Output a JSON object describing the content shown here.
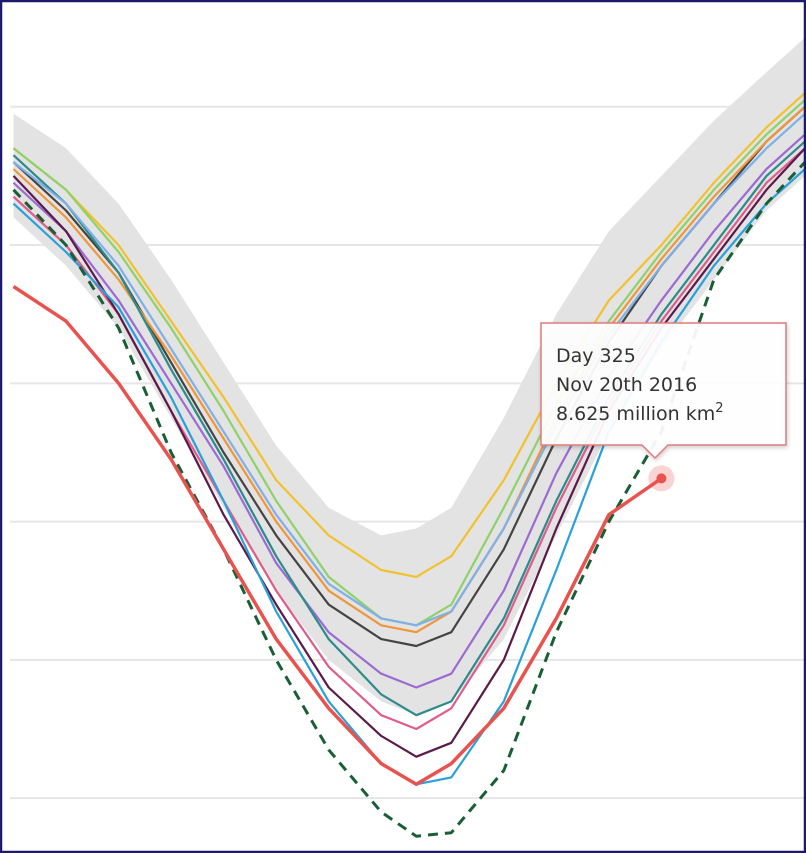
{
  "chart_data": {
    "type": "line",
    "x": [
      140,
      155,
      170,
      185,
      200,
      215,
      230,
      245,
      255,
      265,
      280,
      295,
      310,
      325,
      340,
      355,
      366
    ],
    "xlim": [
      139,
      366
    ],
    "ylim": [
      3.25,
      15.4
    ],
    "yticks": [
      4,
      6,
      8,
      10,
      12,
      14
    ],
    "grid": true,
    "band": {
      "color": "#e3e3e3",
      "lower": [
        12.4,
        11.7,
        10.8,
        9.5,
        8.2,
        7.0,
        6.0,
        5.4,
        5.2,
        5.4,
        6.3,
        7.8,
        9.3,
        10.5,
        11.5,
        12.5,
        13.0
      ],
      "upper": [
        13.9,
        13.4,
        12.6,
        11.5,
        10.3,
        9.1,
        8.2,
        7.8,
        7.9,
        8.2,
        9.5,
        11.0,
        12.2,
        13.0,
        13.8,
        14.5,
        15.0
      ]
    },
    "series": [
      {
        "color": "#f2c12e",
        "values": [
          13.4,
          12.8,
          12.0,
          10.9,
          9.8,
          8.6,
          7.8,
          7.3,
          7.2,
          7.5,
          8.6,
          10.0,
          11.2,
          12.0,
          12.9,
          13.7,
          14.2
        ]
      },
      {
        "color": "#444444",
        "values": [
          13.2,
          12.5,
          11.6,
          10.3,
          9.0,
          7.8,
          6.8,
          6.3,
          6.2,
          6.4,
          7.6,
          9.2,
          10.6,
          11.7,
          12.6,
          13.5,
          14.0
        ]
      },
      {
        "color": "#9b6bd1",
        "values": [
          12.9,
          12.2,
          11.2,
          10.0,
          8.8,
          7.4,
          6.4,
          5.8,
          5.6,
          5.8,
          7.0,
          8.7,
          10.1,
          11.2,
          12.2,
          13.1,
          13.6
        ]
      },
      {
        "color": "#f0963a",
        "values": [
          13.1,
          12.4,
          11.5,
          10.4,
          9.2,
          8.0,
          7.0,
          6.5,
          6.4,
          6.7,
          7.9,
          9.5,
          10.8,
          11.8,
          12.7,
          13.5,
          14.0
        ]
      },
      {
        "color": "#2e8b8b",
        "values": [
          13.3,
          12.6,
          11.6,
          10.2,
          8.9,
          7.5,
          6.3,
          5.5,
          5.2,
          5.4,
          6.6,
          8.3,
          9.8,
          11.0,
          12.0,
          13.0,
          13.5
        ]
      },
      {
        "color": "#e05c8a",
        "values": [
          12.7,
          12.0,
          11.0,
          9.6,
          8.3,
          7.0,
          5.9,
          5.2,
          5.0,
          5.3,
          6.5,
          8.2,
          9.7,
          10.9,
          11.9,
          12.9,
          13.4
        ]
      },
      {
        "color": "#8fd16a",
        "values": [
          13.4,
          12.8,
          11.9,
          10.8,
          9.6,
          8.3,
          7.2,
          6.6,
          6.5,
          6.8,
          8.2,
          9.7,
          10.9,
          11.9,
          12.8,
          13.6,
          14.1
        ]
      },
      {
        "color": "#5a1a4a",
        "values": [
          13.0,
          12.2,
          11.0,
          9.6,
          8.1,
          6.8,
          5.6,
          4.9,
          4.6,
          4.8,
          6.0,
          7.9,
          9.6,
          10.8,
          11.8,
          12.8,
          13.4
        ]
      },
      {
        "color": "#7fb0e8",
        "values": [
          13.2,
          12.6,
          11.7,
          10.5,
          9.3,
          8.1,
          7.1,
          6.6,
          6.5,
          6.7,
          7.9,
          9.4,
          10.7,
          11.7,
          12.6,
          13.4,
          13.9
        ]
      },
      {
        "color": "#2aa0d8",
        "values": [
          12.6,
          11.9,
          11.1,
          9.8,
          8.3,
          6.7,
          5.4,
          4.5,
          4.2,
          4.3,
          5.4,
          7.3,
          9.3,
          10.6,
          11.7,
          12.6,
          13.1
        ]
      },
      {
        "color": "#1a5e36",
        "dashed": true,
        "values": [
          12.8,
          12.0,
          10.8,
          9.0,
          7.6,
          6.0,
          4.7,
          3.8,
          3.45,
          3.5,
          4.4,
          6.4,
          8.0,
          9.3,
          11.5,
          12.6,
          13.2
        ]
      },
      {
        "color": "#e8534f",
        "values": [
          11.4,
          10.9,
          10.0,
          8.9,
          7.6,
          6.3,
          5.3,
          4.5,
          4.2,
          4.5,
          5.3,
          6.6,
          8.1,
          8.625,
          null,
          null,
          null
        ]
      }
    ],
    "tooltip": {
      "series": 11,
      "index": 13,
      "day": "Day 325",
      "date": "Nov 20th 2016",
      "value_text": "8.625 million km",
      "superscript": "2"
    }
  }
}
